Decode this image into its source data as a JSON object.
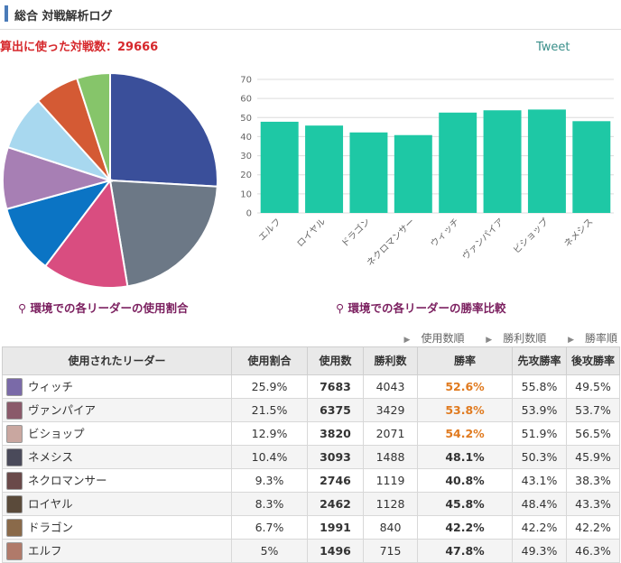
{
  "header": {
    "title": "総合 対戦解析ログ"
  },
  "summary": {
    "count_label": "算出に使った対戦数：29666"
  },
  "tweet": "Tweet",
  "pie_caption": "環境での各リーダーの使用割合",
  "bar_caption": "環境での各リーダーの勝率比較",
  "sort_links": [
    "使用数順",
    "勝利数順",
    "勝率順"
  ],
  "table": {
    "headers": [
      "使用されたリーダー",
      "使用割合",
      "使用数",
      "勝利数",
      "勝率",
      "先攻勝率",
      "後攻勝率"
    ],
    "rows": [
      {
        "leader": "ウィッチ",
        "share": "25.9%",
        "uses": "7683",
        "wins": "4043",
        "rate": "52.6%",
        "first": "55.8%",
        "second": "49.5%",
        "hi": true
      },
      {
        "leader": "ヴァンパイア",
        "share": "21.5%",
        "uses": "6375",
        "wins": "3429",
        "rate": "53.8%",
        "first": "53.9%",
        "second": "53.7%",
        "hi": true
      },
      {
        "leader": "ビショップ",
        "share": "12.9%",
        "uses": "3820",
        "wins": "2071",
        "rate": "54.2%",
        "first": "51.9%",
        "second": "56.5%",
        "hi": true
      },
      {
        "leader": "ネメシス",
        "share": "10.4%",
        "uses": "3093",
        "wins": "1488",
        "rate": "48.1%",
        "first": "50.3%",
        "second": "45.9%",
        "hi": false
      },
      {
        "leader": "ネクロマンサー",
        "share": "9.3%",
        "uses": "2746",
        "wins": "1119",
        "rate": "40.8%",
        "first": "43.1%",
        "second": "38.3%",
        "hi": false
      },
      {
        "leader": "ロイヤル",
        "share": "8.3%",
        "uses": "2462",
        "wins": "1128",
        "rate": "45.8%",
        "first": "48.4%",
        "second": "43.3%",
        "hi": false
      },
      {
        "leader": "ドラゴン",
        "share": "6.7%",
        "uses": "1991",
        "wins": "840",
        "rate": "42.2%",
        "first": "42.2%",
        "second": "42.2%",
        "hi": false
      },
      {
        "leader": "エルフ",
        "share": "5%",
        "uses": "1496",
        "wins": "715",
        "rate": "47.8%",
        "first": "49.3%",
        "second": "46.3%",
        "hi": false
      }
    ]
  },
  "avatar_colors": [
    "#7a6aa8",
    "#8a5a6a",
    "#c9a7a0",
    "#4a4a5a",
    "#6a4a4a",
    "#5a4a3a",
    "#8a6a4a",
    "#b07a6a"
  ],
  "chart_data": [
    {
      "type": "pie",
      "slices": [
        {
          "value": 25.9,
          "color": "#3a4f9a"
        },
        {
          "value": 21.5,
          "color": "#6c7886"
        },
        {
          "value": 12.9,
          "color": "#d94d80"
        },
        {
          "value": 10.4,
          "color": "#0b74c4"
        },
        {
          "value": 9.3,
          "color": "#a77fb4"
        },
        {
          "value": 8.3,
          "color": "#a8d8ef"
        },
        {
          "value": 6.7,
          "color": "#d45a34"
        },
        {
          "value": 5.0,
          "color": "#86c56a"
        }
      ]
    },
    {
      "type": "bar",
      "categories": [
        "エルフ",
        "ロイヤル",
        "ドラゴン",
        "ネクロマンサー",
        "ウィッチ",
        "ヴァンパイア",
        "ビショップ",
        "ネメシス"
      ],
      "values": [
        47.8,
        45.8,
        42.2,
        40.8,
        52.6,
        53.8,
        54.2,
        48.1
      ],
      "ylim": [
        0,
        70
      ],
      "yticks": [
        0,
        10,
        20,
        30,
        40,
        50,
        60,
        70
      ],
      "color": "#1ec8a5",
      "grid": true
    }
  ]
}
